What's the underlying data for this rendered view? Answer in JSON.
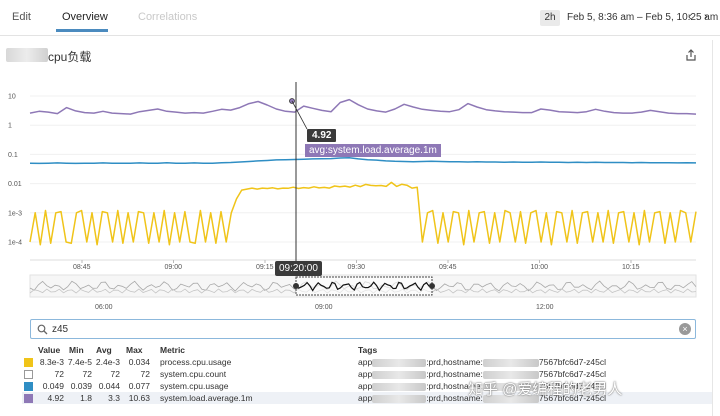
{
  "tabs": {
    "edit": "Edit",
    "overview": "Overview",
    "correlations": "Correlations"
  },
  "time_range": {
    "badge": "2h",
    "text": "Feb 5, 8:36 am – Feb 5, 10:25 am",
    "prev_icon": "chevron-left-icon",
    "next_icon": "chevron-right-icon"
  },
  "graph": {
    "title_suffix": "cpu负载",
    "share_icon": "share-icon"
  },
  "tooltip": {
    "value": "4.92",
    "metric": "avg:system.load.average.1m",
    "time": "09:20:00"
  },
  "chart_data": {
    "type": "line",
    "y_scale": "log",
    "ylim": [
      0.0001,
      10
    ],
    "y_ticks": [
      "10",
      "1",
      "0.1",
      "0.01",
      "1e-3",
      "1e-4"
    ],
    "x_ticks": [
      "08:45",
      "09:00",
      "09:15",
      "09:30",
      "09:45",
      "10:00",
      "10:15"
    ],
    "overview_ticks": [
      "06:00",
      "09:00",
      "12:00"
    ],
    "colors": {
      "process_cpu_usage": "#f0c419",
      "system_cpu_usage": "#2f8ec4",
      "system_load_average_1m": "#8e78b6"
    },
    "series": [
      {
        "name": "system.load.average.1m",
        "color": "#8e78b6",
        "values": [
          2.6,
          3.0,
          2.8,
          2.5,
          4.0,
          3.1,
          2.7,
          2.6,
          3.0,
          2.6,
          2.5,
          2.4,
          2.9,
          3.2,
          3.6,
          3.0,
          2.8,
          2.6,
          2.7,
          2.6,
          3.0,
          3.5,
          3.3,
          4.0,
          5.5,
          6.5,
          4.9,
          3.6,
          3.0,
          2.8,
          4.5,
          3.8,
          3.2,
          2.9,
          6.0,
          7.5,
          5.0,
          3.6,
          3.1,
          2.8,
          3.6,
          5.2,
          4.2,
          3.5,
          3.2,
          3.0,
          2.9,
          3.4,
          5.5,
          4.2,
          3.4,
          3.1,
          2.9,
          2.8,
          2.7,
          2.7,
          3.6,
          3.3,
          2.9,
          2.8,
          2.7,
          2.9,
          3.5,
          3.0,
          2.7,
          2.6,
          2.6,
          2.8,
          3.2,
          2.9,
          2.6,
          2.5,
          2.5,
          2.4
        ]
      },
      {
        "name": "system.cpu.usage",
        "color": "#2f8ec4",
        "values": [
          0.05,
          0.049,
          0.05,
          0.051,
          0.05,
          0.049,
          0.05,
          0.05,
          0.051,
          0.05,
          0.05,
          0.05,
          0.051,
          0.05,
          0.05,
          0.052,
          0.05,
          0.05,
          0.051,
          0.05,
          0.05,
          0.052,
          0.053,
          0.055,
          0.057,
          0.06,
          0.062,
          0.065,
          0.066,
          0.067,
          0.068,
          0.07,
          0.071,
          0.072,
          0.075,
          0.077,
          0.07,
          0.066,
          0.064,
          0.06,
          0.058,
          0.057,
          0.056,
          0.057,
          0.058,
          0.057,
          0.056,
          0.056,
          0.055,
          0.056,
          0.055,
          0.055,
          0.054,
          0.055,
          0.054,
          0.054,
          0.055,
          0.054,
          0.054,
          0.053,
          0.054,
          0.053,
          0.054,
          0.053,
          0.053,
          0.053,
          0.052,
          0.053,
          0.052,
          0.052,
          0.052,
          0.051,
          0.052,
          0.051
        ]
      },
      {
        "name": "process.cpu.usage",
        "color": "#f0c419",
        "values": [
          0.0001,
          0.001,
          8e-05,
          0.0012,
          9e-05,
          0.001,
          0.0011,
          0.0001,
          9e-05,
          0.001,
          0.0012,
          0.0001,
          0.001,
          8e-05,
          0.0011,
          0.001,
          0.0001,
          0.0012,
          9e-05,
          0.001,
          0.0001,
          0.0011,
          0.001,
          9e-05,
          0.001,
          0.0001,
          0.0012,
          8e-05,
          0.001,
          0.0001,
          0.0011,
          0.0001,
          9e-05,
          0.0012,
          0.0001,
          0.001,
          9e-05,
          0.0011,
          0.0001,
          0.001,
          0.003,
          0.006,
          0.0065,
          0.007,
          0.0065,
          0.007,
          0.0068,
          0.0072,
          0.0066,
          0.007,
          0.0069,
          0.0075,
          0.0068,
          0.0073,
          0.007,
          0.0078,
          0.0071,
          0.0074,
          0.007,
          0.0083,
          0.0078,
          0.0082,
          0.0076,
          0.0088,
          0.0079,
          0.0094,
          0.0087,
          0.0085,
          0.0086,
          0.008,
          0.011,
          0.008,
          0.0095,
          0.0088,
          0.007,
          0.0075,
          0.0001,
          0.001,
          0.0012,
          9e-05,
          0.001,
          0.0001,
          0.0011,
          0.001,
          8e-05,
          0.0012,
          0.0001,
          0.001,
          0.0011,
          9e-05,
          0.001,
          0.0001,
          0.0012,
          0.001,
          0.0001,
          0.0011,
          9e-05,
          0.001,
          0.0012,
          0.0001,
          0.001,
          8e-05,
          0.0011,
          0.001,
          0.0001,
          0.0012,
          9e-05,
          0.001,
          0.0011,
          0.0001,
          0.001,
          0.0001,
          0.0012,
          9e-05,
          0.001,
          0.0011,
          0.0001,
          0.001,
          8e-05,
          0.0012,
          0.0001,
          0.001,
          0.0011,
          9e-05,
          0.001,
          0.0001,
          0.0012,
          0.001,
          0.0001,
          0.0011
        ]
      }
    ]
  },
  "search": {
    "value": "z45",
    "icon": "search-icon",
    "clear_icon": "close-icon"
  },
  "legend": {
    "headers": {
      "value": "Value",
      "min": "Min",
      "avg": "Avg",
      "max": "Max",
      "metric": "Metric",
      "tags": "Tags"
    },
    "rows": [
      {
        "color": "#f0c419",
        "value": "8.3e-3",
        "min": "7.4e-5",
        "avg": "2.4e-3",
        "max": "0.034",
        "metric": "process.cpu.usage",
        "tag_prefix": "app",
        "tag_mid": ":prd,hostname:",
        "tag_suffix": "7567bfc6d7-z45cl"
      },
      {
        "color": "#ffffff",
        "value": "72",
        "min": "72",
        "avg": "72",
        "max": "72",
        "metric": "system.cpu.count",
        "tag_prefix": "app",
        "tag_mid": ":prd,hostname:",
        "tag_suffix": "7567bfc6d7-z45cl"
      },
      {
        "color": "#2f8ec4",
        "value": "0.049",
        "min": "0.039",
        "avg": "0.044",
        "max": "0.077",
        "metric": "system.cpu.usage",
        "tag_prefix": "app",
        "tag_mid": ":prd,hostname:",
        "tag_suffix": "7567bfc6d7-z45cl"
      },
      {
        "color": "#8e78b6",
        "value": "4.92",
        "min": "1.8",
        "avg": "3.3",
        "max": "10.63",
        "metric": "system.load.average.1m",
        "tag_prefix": "app",
        "tag_mid": ":prd,hostname:",
        "tag_suffix": "7567bfc6d7-z45cl"
      }
    ]
  },
  "watermark": "知乎 @爱编程的老男人"
}
